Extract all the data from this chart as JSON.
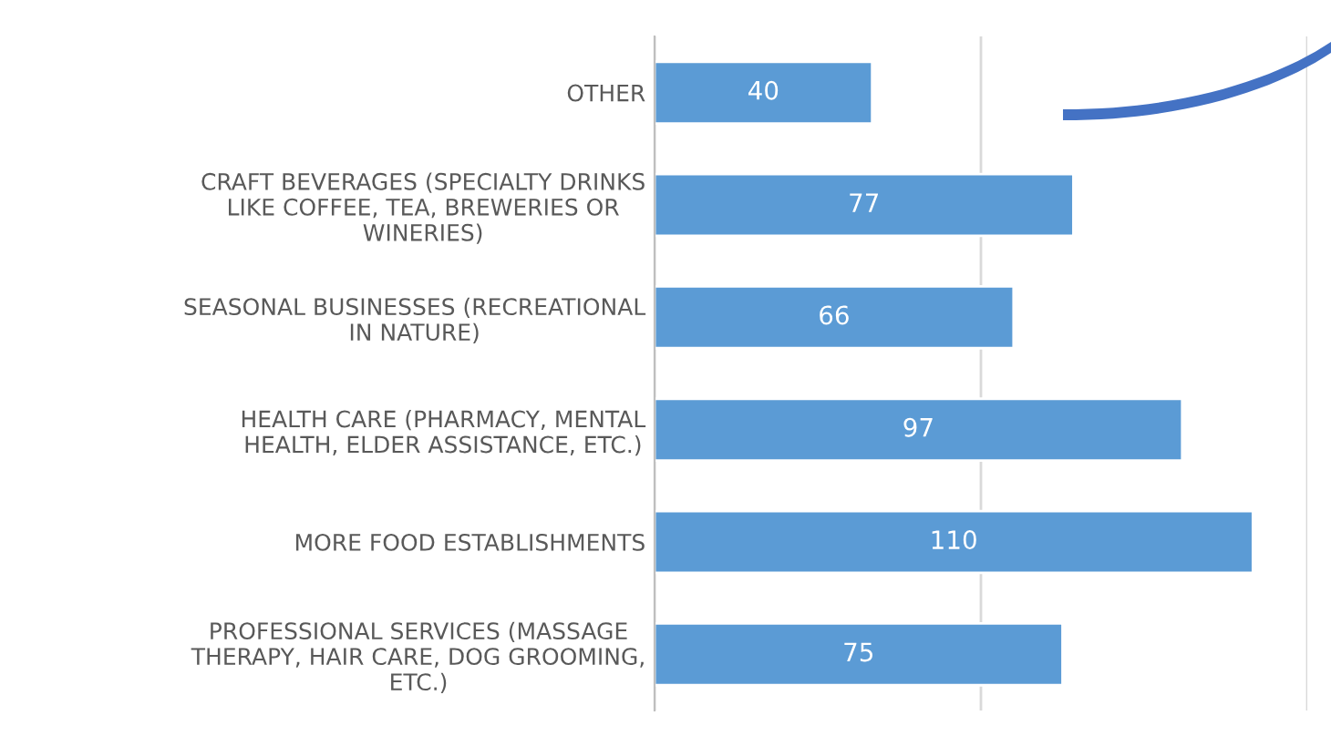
{
  "chart_data": {
    "type": "bar",
    "orientation": "horizontal",
    "categories": [
      "OTHER",
      "CRAFT BEVERAGES (SPECIALTY DRINKS\nLIKE COFFEE, TEA, BREWERIES OR\nWINERIES)",
      "SEASONAL BUSINESSES (RECREATIONAL\nIN NATURE)",
      "HEALTH CARE (PHARMACY, MENTAL\nHEALTH, ELDER ASSISTANCE, ETC.)",
      "MORE FOOD ESTABLISHMENTS",
      "PROFESSIONAL SERVICES (MASSAGE\nTHERAPY, HAIR CARE, DOG GROOMING,\nETC.)"
    ],
    "values": [
      40,
      77,
      66,
      97,
      110,
      75
    ],
    "color": "#5b9bd5",
    "xlim": [
      0,
      120
    ],
    "xticks": [
      {
        "value": 0,
        "label": null
      },
      {
        "value": 60,
        "label": null
      },
      {
        "value": 120,
        "label": null
      }
    ],
    "grid": "x",
    "data_labels": true,
    "legend": false
  }
}
